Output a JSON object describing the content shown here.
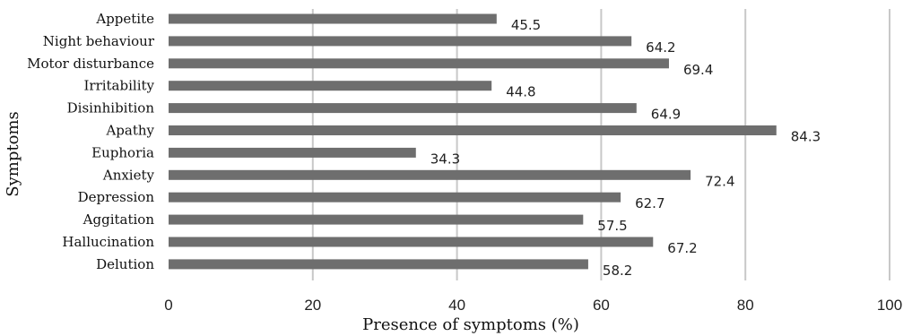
{
  "chart_data": {
    "type": "bar",
    "orientation": "horizontal",
    "categories": [
      "Appetite",
      "Night behaviour",
      "Motor disturbance",
      "Irritability",
      "Disinhibition",
      "Apathy",
      "Euphoria",
      "Anxiety",
      "Depression",
      "Aggitation",
      "Hallucination",
      "Delution"
    ],
    "values": [
      45.5,
      64.2,
      69.4,
      44.8,
      64.9,
      84.3,
      34.3,
      72.4,
      62.7,
      57.5,
      67.2,
      58.2
    ],
    "value_labels": [
      "45.5",
      "64.2",
      "69.4",
      "44.8",
      "64.9",
      "84.3",
      "34.3",
      "72.4",
      "62.7",
      "57.5",
      "67.2",
      "58.2"
    ],
    "xlabel": "Presence of symptoms (%)",
    "ylabel": "Symptoms",
    "xlim": [
      0,
      100
    ],
    "xticks": [
      0,
      20,
      40,
      60,
      80,
      100
    ],
    "xtick_labels": [
      "0",
      "20",
      "40",
      "60",
      "80",
      "100"
    ],
    "grid": "vertical",
    "bar_color": "#6e6e6e",
    "grid_color": "#c8c8c8"
  }
}
